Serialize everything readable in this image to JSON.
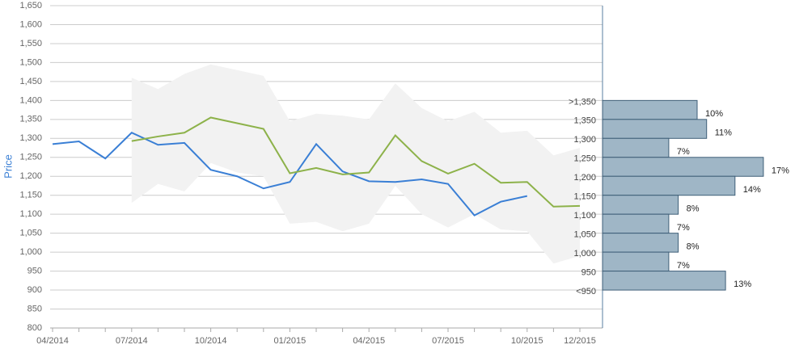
{
  "chart_data": {
    "type": "line",
    "y_label": "Price",
    "categories": [
      "04/2014",
      null,
      null,
      "07/2014",
      null,
      null,
      "10/2014",
      null,
      null,
      "01/2015",
      null,
      null,
      "04/2015",
      null,
      null,
      "07/2015",
      null,
      null,
      "10/2015",
      null,
      "12/2015"
    ],
    "series": [
      {
        "color": "#3a7fd5",
        "values": [
          1285,
          1292,
          1247,
          1315,
          1283,
          1288,
          1217,
          1200,
          1168,
          1185,
          1285,
          1213,
          1187,
          1185,
          1192,
          1180,
          1097,
          1133,
          1148,
          null,
          null
        ]
      },
      {
        "color": "#8db24a",
        "values": [
          null,
          null,
          null,
          1293,
          1305,
          1315,
          1355,
          1340,
          1325,
          1208,
          1222,
          1205,
          1210,
          1308,
          1240,
          1207,
          1233,
          1183,
          1185,
          1120,
          1122
        ]
      }
    ],
    "band": {
      "color": "#f2f2f2",
      "upper": [
        null,
        null,
        null,
        1460,
        1430,
        1470,
        1495,
        1480,
        1465,
        1345,
        1365,
        1360,
        1350,
        1445,
        1380,
        1345,
        1370,
        1315,
        1320,
        1255,
        1275
      ],
      "lower": [
        null,
        null,
        null,
        1130,
        1180,
        1160,
        1235,
        1210,
        1200,
        1075,
        1080,
        1055,
        1075,
        1175,
        1100,
        1065,
        1100,
        1060,
        1055,
        970,
        990
      ]
    },
    "ylim": [
      800,
      1650
    ],
    "yticks": [
      800,
      850,
      900,
      950,
      {
        "value": 1000,
        "label": "1,000"
      },
      {
        "value": 1050,
        "label": "1,050"
      },
      {
        "value": 1100,
        "label": "1,100"
      },
      {
        "value": 1150,
        "label": "1,150"
      },
      {
        "value": 1200,
        "label": "1,200"
      },
      {
        "value": 1250,
        "label": "1,250"
      },
      {
        "value": 1300,
        "label": "1,300"
      },
      {
        "value": 1350,
        "label": "1,350"
      },
      {
        "value": 1400,
        "label": "1,400"
      },
      {
        "value": 1450,
        "label": "1,450"
      },
      {
        "value": 1500,
        "label": "1,500"
      },
      {
        "value": 1550,
        "label": "1,550"
      },
      {
        "value": 1600,
        "label": "1,600"
      },
      {
        "value": 1650,
        "label": "1,650"
      }
    ],
    "grid": true,
    "distribution": {
      "type": "bar",
      "color": "#9fb6c6",
      "edge_labels": [
        ">1,350",
        "1,350",
        "1,300",
        "1,250",
        "1,200",
        "1,150",
        "1,100",
        "1,050",
        "1,000",
        "950",
        "<950"
      ],
      "values": [
        10,
        11,
        7,
        17,
        14,
        8,
        7,
        8,
        7,
        13
      ],
      "value_labels": [
        "10%",
        "11%",
        "7%",
        "17%",
        "14%",
        "8%",
        "7%",
        "8%",
        "7%",
        "13%"
      ]
    }
  }
}
